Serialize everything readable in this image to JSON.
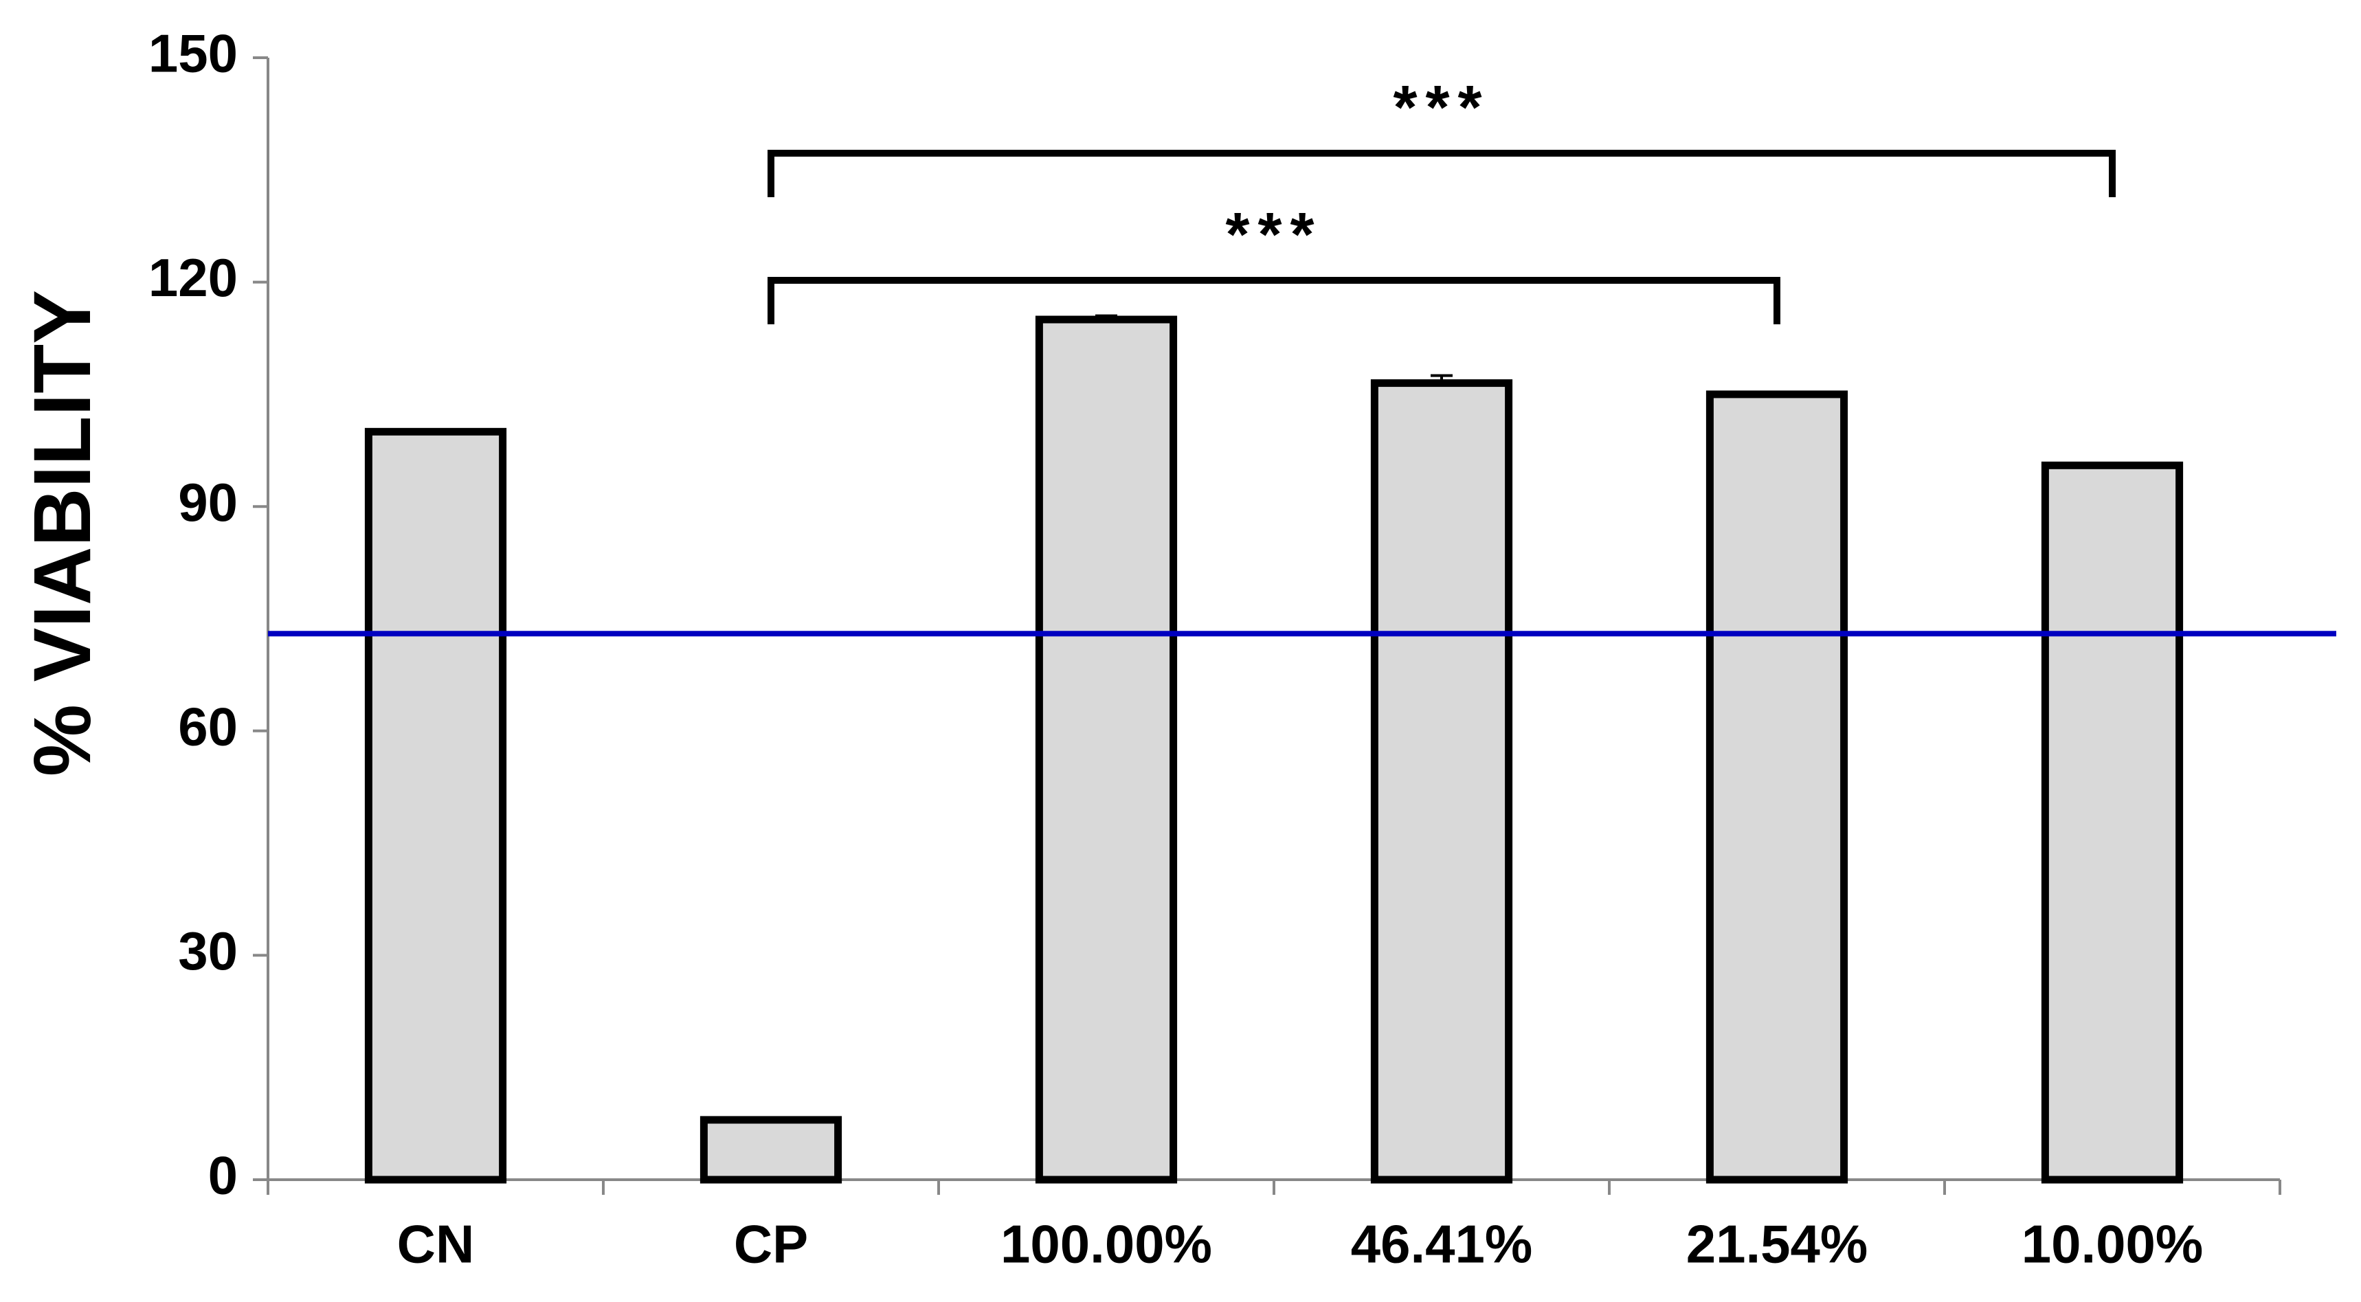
{
  "chart_data": {
    "type": "bar",
    "y_label": "% VIABILITY",
    "categories": [
      "CN",
      "CP",
      "100.00%",
      "46.41%",
      "21.54%",
      "10.00%"
    ],
    "values": [
      100,
      8,
      115,
      106.5,
      105,
      95.5
    ],
    "errors": [
      0,
      0,
      0.5,
      1,
      0,
      0
    ],
    "color": "#d9d9d9",
    "ylim": [
      0,
      150
    ],
    "yticks": [
      0,
      30,
      60,
      90,
      120,
      150
    ],
    "reference_line": {
      "value": 73,
      "color": "#0000c0"
    },
    "annotations": [
      {
        "text": "***",
        "between": [
          "CP",
          "21.54%"
        ]
      },
      {
        "text": "***",
        "between": [
          "CP",
          "10.00%"
        ]
      }
    ]
  }
}
